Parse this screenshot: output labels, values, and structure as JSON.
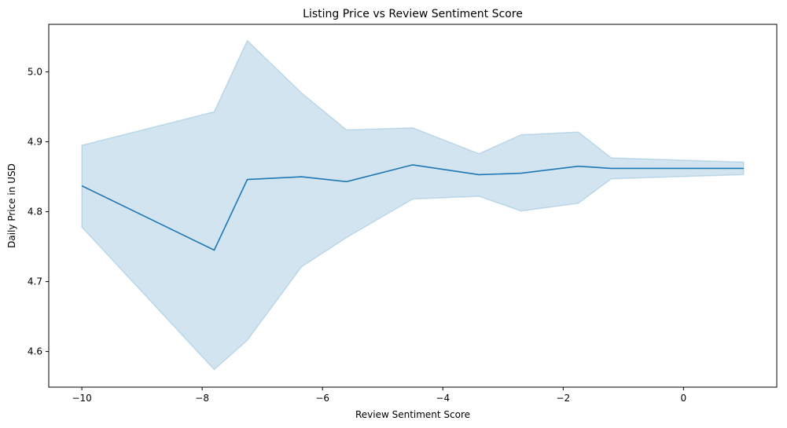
{
  "chart_data": {
    "type": "line",
    "title": "Listing Price vs Review Sentiment Score",
    "xlabel": "Review Sentiment Score",
    "ylabel": "Daily Price in USD",
    "xlim": [
      -10.55,
      1.55
    ],
    "ylim": [
      4.549,
      5.068
    ],
    "xticks": [
      -10,
      -8,
      -6,
      -4,
      -2,
      0
    ],
    "xtick_labels": [
      "−10",
      "−8",
      "−6",
      "−4",
      "−2",
      "0"
    ],
    "yticks": [
      4.6,
      4.7,
      4.8,
      4.9,
      5.0
    ],
    "ytick_labels": [
      "4.6",
      "4.7",
      "4.8",
      "4.9",
      "5.0"
    ],
    "grid": false,
    "legend": "none",
    "series": [
      {
        "color": "#1f77b4",
        "band_color": "#1f77b4",
        "x": [
          -10,
          -7.8,
          -7.25,
          -6.35,
          -5.6,
          -4.5,
          -3.4,
          -2.7,
          -1.75,
          -1.2,
          1.0
        ],
        "y": [
          4.837,
          4.745,
          4.846,
          4.85,
          4.843,
          4.867,
          4.853,
          4.855,
          4.865,
          4.862,
          4.862
        ],
        "ci_lower": [
          4.778,
          4.574,
          4.616,
          4.721,
          4.763,
          4.818,
          4.822,
          4.801,
          4.812,
          4.847,
          4.853
        ],
        "ci_upper": [
          4.895,
          4.943,
          5.045,
          4.97,
          4.917,
          4.92,
          4.883,
          4.91,
          4.914,
          4.877,
          4.871
        ]
      }
    ]
  }
}
